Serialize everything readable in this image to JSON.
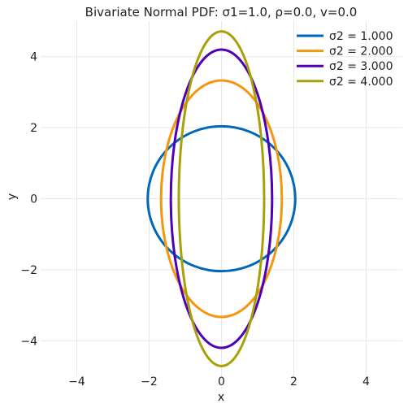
{
  "chart_data": {
    "type": "line",
    "title": "Bivariate Normal PDF: σ1=1.0, ρ=0.0, v=0.0",
    "xlabel": "x",
    "ylabel": "y",
    "xlim": [
      -5,
      5
    ],
    "ylim": [
      -5,
      5
    ],
    "x_ticks": [
      -4,
      -2,
      0,
      2,
      4
    ],
    "y_ticks": [
      -4,
      -2,
      0,
      2,
      4
    ],
    "x_tick_labels": [
      "−4",
      "−2",
      "0",
      "2",
      "4"
    ],
    "y_tick_labels": [
      "−4",
      "−2",
      "0",
      "2",
      "4"
    ],
    "grid": true,
    "legend_position": "top-right",
    "series": [
      {
        "name": "σ2 = 1.000",
        "color": "#0068b8",
        "rx": 2.04,
        "ry": 2.04
      },
      {
        "name": "σ2 = 2.000",
        "color": "#f5960f",
        "rx": 1.67,
        "ry": 3.33
      },
      {
        "name": "σ2 = 3.000",
        "color": "#5000b8",
        "rx": 1.4,
        "ry": 4.2
      },
      {
        "name": "σ2 = 4.000",
        "color": "#a8a00a",
        "rx": 1.18,
        "ry": 4.71
      }
    ]
  }
}
